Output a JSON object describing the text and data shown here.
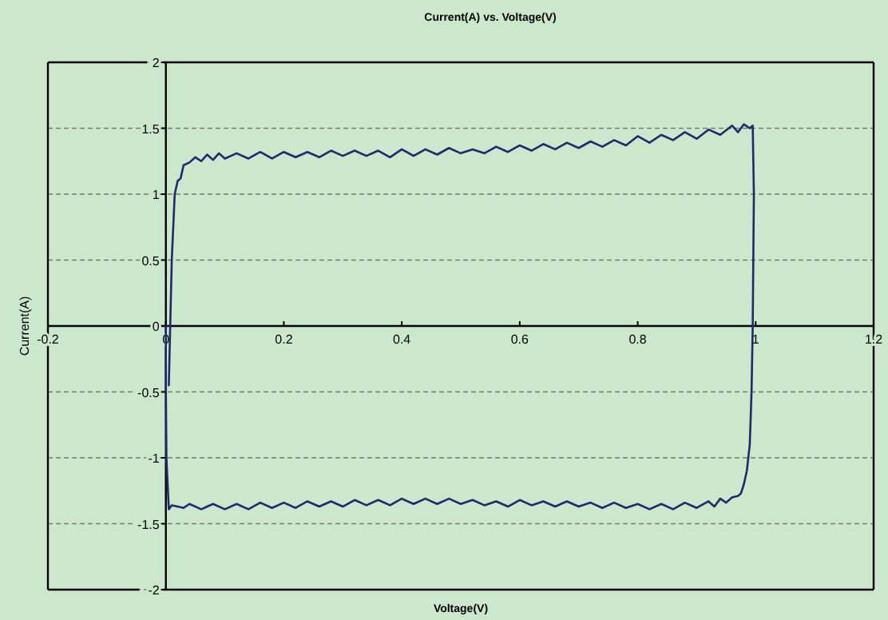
{
  "chart_data": {
    "type": "line",
    "title": "Current(A) vs. Voltage(V)",
    "xlabel": "Voltage(V)",
    "ylabel": "Current(A)",
    "xlim": [
      -0.2,
      1.2
    ],
    "xticks": [
      -0.2,
      0,
      0.2,
      0.4,
      0.6,
      0.8,
      1,
      1.2
    ],
    "ylim": [
      -2,
      2
    ],
    "yticks": [
      -2,
      -1.5,
      -1,
      -0.5,
      0,
      0.5,
      1,
      1.5,
      2
    ],
    "grid": "y",
    "marker": "none",
    "line_style": "solid",
    "series": [
      {
        "color": "#1f2a6e",
        "x": [
          0.005,
          0.01,
          0.015,
          0.02,
          0.025,
          0.03,
          0.04,
          0.05,
          0.06,
          0.07,
          0.08,
          0.09,
          0.1,
          0.12,
          0.14,
          0.16,
          0.18,
          0.2,
          0.22,
          0.24,
          0.26,
          0.28,
          0.3,
          0.32,
          0.34,
          0.36,
          0.38,
          0.4,
          0.42,
          0.44,
          0.46,
          0.48,
          0.5,
          0.52,
          0.54,
          0.56,
          0.58,
          0.6,
          0.62,
          0.64,
          0.66,
          0.68,
          0.7,
          0.72,
          0.74,
          0.76,
          0.78,
          0.8,
          0.82,
          0.84,
          0.86,
          0.88,
          0.9,
          0.92,
          0.94,
          0.96,
          0.97,
          0.98,
          0.99,
          0.995,
          0.997,
          0.995,
          0.993,
          0.99,
          0.985,
          0.98,
          0.975,
          0.97,
          0.96,
          0.95,
          0.94,
          0.93,
          0.92,
          0.9,
          0.88,
          0.86,
          0.84,
          0.82,
          0.8,
          0.78,
          0.76,
          0.74,
          0.72,
          0.7,
          0.68,
          0.66,
          0.64,
          0.62,
          0.6,
          0.58,
          0.56,
          0.54,
          0.52,
          0.5,
          0.48,
          0.46,
          0.44,
          0.42,
          0.4,
          0.38,
          0.36,
          0.34,
          0.32,
          0.3,
          0.28,
          0.26,
          0.24,
          0.22,
          0.2,
          0.18,
          0.16,
          0.14,
          0.12,
          0.1,
          0.08,
          0.06,
          0.04,
          0.03,
          0.02,
          0.01,
          0.005,
          0.003,
          0.001,
          0,
          0
        ],
        "values": [
          -0.45,
          0.5,
          1.0,
          1.1,
          1.12,
          1.22,
          1.24,
          1.28,
          1.25,
          1.3,
          1.26,
          1.31,
          1.27,
          1.31,
          1.27,
          1.32,
          1.27,
          1.32,
          1.28,
          1.32,
          1.28,
          1.33,
          1.29,
          1.33,
          1.29,
          1.33,
          1.28,
          1.34,
          1.29,
          1.34,
          1.3,
          1.35,
          1.31,
          1.34,
          1.31,
          1.36,
          1.32,
          1.37,
          1.33,
          1.38,
          1.34,
          1.39,
          1.35,
          1.4,
          1.36,
          1.41,
          1.37,
          1.44,
          1.39,
          1.45,
          1.41,
          1.47,
          1.42,
          1.49,
          1.45,
          1.52,
          1.47,
          1.53,
          1.5,
          1.52,
          1.0,
          0,
          -0.5,
          -0.9,
          -1.1,
          -1.2,
          -1.27,
          -1.29,
          -1.3,
          -1.34,
          -1.31,
          -1.37,
          -1.33,
          -1.38,
          -1.34,
          -1.39,
          -1.35,
          -1.39,
          -1.35,
          -1.38,
          -1.34,
          -1.38,
          -1.34,
          -1.37,
          -1.33,
          -1.37,
          -1.33,
          -1.36,
          -1.32,
          -1.37,
          -1.33,
          -1.36,
          -1.32,
          -1.35,
          -1.31,
          -1.35,
          -1.31,
          -1.35,
          -1.31,
          -1.36,
          -1.32,
          -1.36,
          -1.32,
          -1.37,
          -1.33,
          -1.37,
          -1.33,
          -1.38,
          -1.34,
          -1.38,
          -1.34,
          -1.39,
          -1.35,
          -1.39,
          -1.35,
          -1.39,
          -1.35,
          -1.38,
          -1.37,
          -1.36,
          -1.39,
          -1.2,
          -1.0,
          -0.5,
          0
        ]
      }
    ]
  }
}
